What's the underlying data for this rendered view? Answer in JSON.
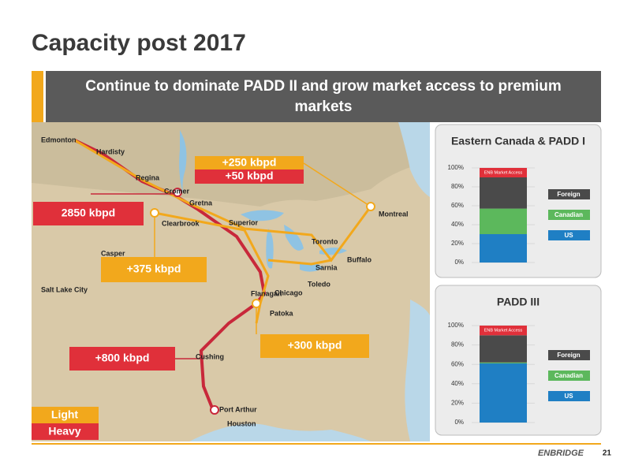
{
  "header": {
    "title": "Capacity post 2017",
    "banner": "Continue to dominate PADD II and grow market access to premium markets"
  },
  "map": {
    "cities": [
      "Edmonton",
      "Hardisty",
      "Regina",
      "Cromer",
      "Gretna",
      "Clearbrook",
      "Superior",
      "Casper",
      "Salt Lake City",
      "Montreal",
      "Toronto",
      "Buffalo",
      "Sarnia",
      "Toledo",
      "Flanagan",
      "Chicago",
      "Patoka",
      "Cushing",
      "Port Arthur",
      "Houston"
    ],
    "volumes": [
      "+250 kbpd",
      "+50 kbpd",
      "2850 kbpd",
      "+375 kbpd",
      "+300 kbpd",
      "+800 kbpd"
    ],
    "legend": [
      "Light",
      "Heavy"
    ]
  },
  "chart_data": [
    {
      "type": "bar",
      "stacked": true,
      "title": "Eastern Canada & PADD I",
      "categories": [
        null
      ],
      "series": [
        {
          "name": "US",
          "color": "#1f7fc4",
          "values": [
            30
          ]
        },
        {
          "name": "Canadian",
          "color": "#5cb85c",
          "values": [
            27
          ]
        },
        {
          "name": "Foreign",
          "color": "#4a4a4a",
          "values": [
            33
          ]
        },
        {
          "name": "ENB Market Access",
          "color": "#e0303a",
          "values": [
            10
          ]
        }
      ],
      "ylim": [
        0,
        100
      ],
      "yticks": [
        {
          "value": 0,
          "label": "0%"
        },
        {
          "value": 20,
          "label": "20%"
        },
        {
          "value": 40,
          "label": "40%"
        },
        {
          "value": 60,
          "label": "60%"
        },
        {
          "value": 80,
          "label": "80%"
        },
        {
          "value": 100,
          "label": "100%"
        }
      ]
    },
    {
      "type": "bar",
      "stacked": true,
      "title": "PADD III",
      "categories": [
        null
      ],
      "series": [
        {
          "name": "US",
          "color": "#1f7fc4",
          "values": [
            61
          ]
        },
        {
          "name": "Canadian",
          "color": "#5cb85c",
          "values": [
            1
          ]
        },
        {
          "name": "Foreign",
          "color": "#4a4a4a",
          "values": [
            28
          ]
        },
        {
          "name": "ENB Market Access",
          "color": "#e0303a",
          "values": [
            10
          ]
        }
      ],
      "ylim": [
        0,
        100
      ],
      "yticks": [
        {
          "value": 0,
          "label": "0%"
        },
        {
          "value": 20,
          "label": "20%"
        },
        {
          "value": 40,
          "label": "40%"
        },
        {
          "value": 60,
          "label": "60%"
        },
        {
          "value": 80,
          "label": "80%"
        },
        {
          "value": 100,
          "label": "100%"
        }
      ]
    }
  ],
  "footer": {
    "logo": "ENBRIDGE",
    "page": "21"
  }
}
